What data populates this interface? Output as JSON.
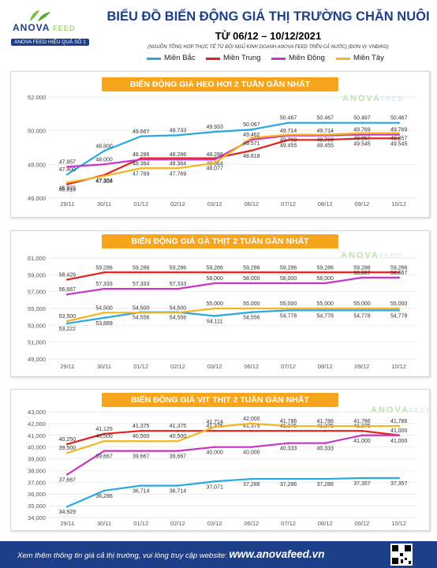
{
  "header": {
    "logo_text": "ANOVA",
    "logo_sub": "FEED",
    "tagline": "ANOVA FEED HIỆU QUẢ SỐ 1",
    "title": "BIỂU ĐỒ BIẾN ĐỘNG GIÁ THỊ TRƯỜNG CHĂN NUÔI",
    "date_range": "TỪ 06/12 – 10/12/2021",
    "source": "(NGUỒN TỔNG HỢP THỰC TẾ TỪ ĐỘI NGŨ KINH DOANH ANOVA FEED TRÊN CẢ NƯỚC)     (ĐƠN VỊ: VNĐ/KG)"
  },
  "legend": [
    {
      "name": "Miền Bắc",
      "color": "#29a8e0"
    },
    {
      "name": "Miền Trung",
      "color": "#e32119"
    },
    {
      "name": "Miền Đông",
      "color": "#c836c4"
    },
    {
      "name": "Miền Tây",
      "color": "#f5b521"
    }
  ],
  "footer": {
    "text": "Xem thêm thông tin giá cả thị trường, vui lòng truy cập website:",
    "url": "www.anovafeed.vn"
  },
  "chart_data": [
    {
      "type": "line",
      "title": "BIẾN ĐỘNG GIÁ HEO HƠI 2 TUẦN GẦN NHẤT",
      "watermark": "ANOVA",
      "watermark_sub": "FEED",
      "categories": [
        "29/11",
        "30/11",
        "01/12",
        "02/12",
        "03/12",
        "06/12",
        "07/12",
        "08/12",
        "09/12",
        "10/12"
      ],
      "ylim": [
        46000,
        52000
      ],
      "yticks": [
        46000,
        48000,
        50000,
        52000
      ],
      "tick_labels": [
        "46.000",
        "48.000",
        "50.000",
        "52.000"
      ],
      "series": [
        {
          "name": "Miền Bắc",
          "color": "#29a8e0",
          "values": [
            47400,
            48800,
            49667,
            49733,
            49933,
            50067,
            50467,
            50467,
            50467,
            50467
          ],
          "labels": [
            "47.400",
            "48.800",
            "49.667",
            "49.733",
            "49.933",
            "50.067",
            "50.467",
            "50.467",
            "50.467",
            "50.467"
          ]
        },
        {
          "name": "Miền Trung",
          "color": "#e32119",
          "values": [
            46818,
            47364,
            48364,
            48364,
            48364,
            48818,
            49455,
            49455,
            49545,
            49545
          ],
          "labels": [
            "46.818",
            "47.364",
            "48.364",
            "48.364",
            "48.364",
            "48.818",
            "49.455",
            "49.455",
            "49.545",
            "49.545"
          ]
        },
        {
          "name": "Miền Đông",
          "color": "#c836c4",
          "values": [
            47857,
            48000,
            48286,
            48286,
            48286,
            49462,
            49714,
            49714,
            49769,
            49769
          ],
          "labels": [
            "47.857",
            "48.000",
            "48.286",
            "48.286",
            "48.286",
            "49.462",
            "49.714",
            "49.714",
            "49.769",
            "49.769"
          ]
        },
        {
          "name": "Miền Tây",
          "color": "#f5b521",
          "values": [
            46923,
            47308,
            47769,
            47769,
            48077,
            49571,
            49769,
            49769,
            49857,
            49857
          ],
          "labels": [
            "46.923",
            "47.308",
            "47.769",
            "47.769",
            "48.077",
            "49.571",
            "49.769",
            "49.769",
            "49.857",
            "49.857"
          ]
        }
      ]
    },
    {
      "type": "line",
      "title": "BIẾN ĐỘNG GIÁ GÀ THỊT 2 TUẦN GẦN NHẤT",
      "watermark": "ANOVA",
      "watermark_sub": "FEED",
      "categories": [
        "29/11",
        "30/11",
        "01/12",
        "02/12",
        "03/12",
        "06/12",
        "07/12",
        "08/12",
        "09/12",
        "10/12"
      ],
      "ylim": [
        49000,
        61000
      ],
      "yticks": [
        49000,
        51000,
        53000,
        55000,
        57000,
        59000,
        61000
      ],
      "tick_labels": [
        "49,000",
        "51,000",
        "53,000",
        "55,000",
        "57,000",
        "59,000",
        "61,000"
      ],
      "series": [
        {
          "name": "Miền Bắc",
          "color": "#29a8e0",
          "values": [
            53222,
            53889,
            54556,
            54556,
            54111,
            54556,
            54778,
            54778,
            54778,
            54778
          ],
          "labels": [
            "53,222",
            "53,889",
            "54,556",
            "54,556",
            "54,111",
            "54,556",
            "54,778",
            "54,778",
            "54,778",
            "54,778"
          ]
        },
        {
          "name": "Miền Trung",
          "color": "#e32119",
          "values": [
            58429,
            59286,
            59286,
            59286,
            59286,
            59286,
            59286,
            59286,
            59286,
            59286
          ],
          "labels": [
            "58,429",
            "59,286",
            "59,286",
            "59,286",
            "59,286",
            "59,286",
            "59,286",
            "59,286",
            "59,286",
            "59,286"
          ]
        },
        {
          "name": "Miền Đông",
          "color": "#c836c4",
          "values": [
            56667,
            57333,
            57333,
            57333,
            58000,
            58000,
            58000,
            58000,
            58667,
            58667
          ],
          "labels": [
            "56,667",
            "57,333",
            "57,333",
            "57,333",
            "58,000",
            "58,000",
            "58,000",
            "58,000",
            "58,667",
            "58,667"
          ]
        },
        {
          "name": "Miền Tây",
          "color": "#f5b521",
          "values": [
            53500,
            54500,
            54500,
            54500,
            55000,
            55000,
            55000,
            55000,
            55000,
            55000
          ],
          "labels": [
            "53,500",
            "54,500",
            "54,500",
            "54,500",
            "55,000",
            "55,000",
            "55,000",
            "55,000",
            "55,000",
            "55,000"
          ]
        }
      ]
    },
    {
      "type": "line",
      "title": "BIẾN ĐỘNG GIÁ VỊT THỊT 2 TUẦN GẦN NHẤT",
      "watermark": "ANOVA",
      "watermark_sub": "FEED",
      "categories": [
        "29/11",
        "30/11",
        "01/12",
        "02/12",
        "03/12",
        "06/12",
        "07/12",
        "08/12",
        "09/12",
        "10/12"
      ],
      "ylim": [
        34000,
        43000
      ],
      "yticks": [
        34000,
        35000,
        36000,
        37000,
        38000,
        39000,
        40000,
        41000,
        42000,
        43000
      ],
      "tick_labels": [
        "34,000",
        "35,000",
        "36,000",
        "37,000",
        "38,000",
        "39,000",
        "40,000",
        "41,000",
        "42,000",
        "43,000"
      ],
      "series": [
        {
          "name": "Miền Bắc",
          "color": "#29a8e0",
          "values": [
            34929,
            36286,
            36714,
            36714,
            37071,
            37286,
            37286,
            37286,
            37357,
            37357
          ],
          "labels": [
            "34,929",
            "36,286",
            "36,714",
            "36,714",
            "37,071",
            "37,286",
            "37,286",
            "37,286",
            "37,357",
            "37,357"
          ]
        },
        {
          "name": "Miền Trung",
          "color": "#e32119",
          "values": [
            40250,
            41125,
            41375,
            41375,
            41375,
            41375,
            41375,
            41375,
            41375,
            41000
          ],
          "labels": [
            "40,250",
            "41,125",
            "41,375",
            "41,375",
            "41,375",
            "41,375",
            "41,375",
            "41,375",
            "41,375",
            "41,000"
          ]
        },
        {
          "name": "Miền Đông",
          "color": "#c836c4",
          "values": [
            37667,
            39667,
            39667,
            39667,
            40000,
            40000,
            40333,
            40333,
            41000,
            41000
          ],
          "labels": [
            "37,667",
            "39,667",
            "39,667",
            "39,667",
            "40,000",
            "40,000",
            "40,333",
            "40,333",
            "41,000",
            "41,000"
          ]
        },
        {
          "name": "Miền Tây",
          "color": "#f5b521",
          "values": [
            39500,
            40500,
            40500,
            40500,
            41714,
            42000,
            41786,
            41786,
            41786,
            41786
          ],
          "labels": [
            "39,500",
            "40,500",
            "40,500",
            "40,500",
            "41,714",
            "42,000",
            "41,786",
            "41,786",
            "41,786",
            "41,786"
          ]
        }
      ]
    }
  ]
}
